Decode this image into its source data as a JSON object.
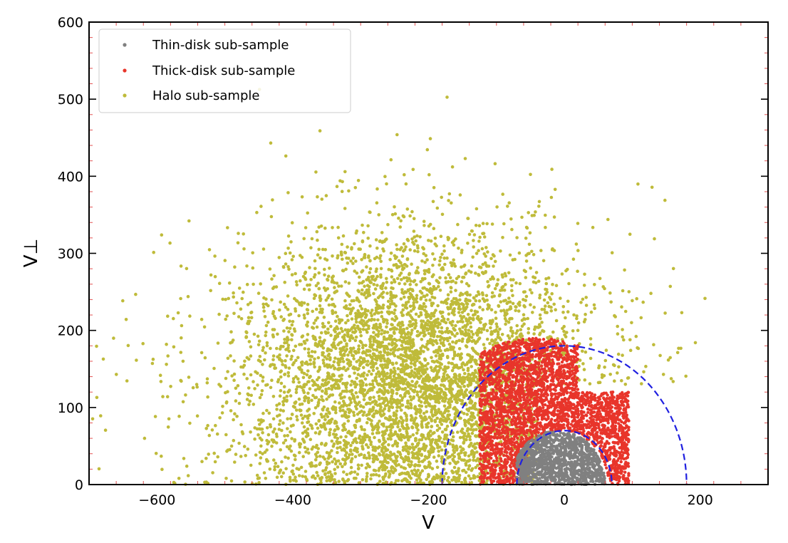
{
  "chart_data": {
    "type": "scatter",
    "xlabel": "V",
    "ylabel": "V⊥",
    "xlim": [
      -700,
      300
    ],
    "ylim": [
      0,
      600
    ],
    "x_ticks": [
      -600,
      -400,
      -200,
      0,
      200
    ],
    "x_tick_labels": [
      "−600",
      "−400",
      "−200",
      "0",
      "200"
    ],
    "y_ticks": [
      0,
      100,
      200,
      300,
      400,
      500,
      600
    ],
    "y_tick_labels": [
      "0",
      "100",
      "200",
      "300",
      "400",
      "500",
      "600"
    ],
    "grid": false,
    "legend_position": "top-left",
    "series": [
      {
        "name": "Thin-disk sub-sample",
        "color": "#808080",
        "region": {
          "center_v": -10,
          "radius": 70,
          "v_range": [
            -70,
            60
          ],
          "v_perp_max": 68
        }
      },
      {
        "name": "Thick-disk sub-sample",
        "color": "#e8352b",
        "region": {
          "center_v": -40,
          "radius": 190,
          "v_range": [
            -125,
            95
          ],
          "v_perp_max": 190
        }
      },
      {
        "name": "Halo sub-sample",
        "color": "#bfbb3a",
        "region": {
          "center_v": -220,
          "spread_v": 120,
          "spread_v_perp": 95,
          "v_range": [
            -700,
            220
          ],
          "v_perp_max": 540
        }
      }
    ],
    "reference_curves": [
      {
        "type": "semicircle",
        "center": [
          0,
          0
        ],
        "radius": 70,
        "style": "dashed",
        "color": "#1f1fe0"
      },
      {
        "type": "semicircle",
        "center": [
          0,
          0
        ],
        "radius": 180,
        "style": "dashed",
        "color": "#1f1fe0"
      }
    ]
  }
}
